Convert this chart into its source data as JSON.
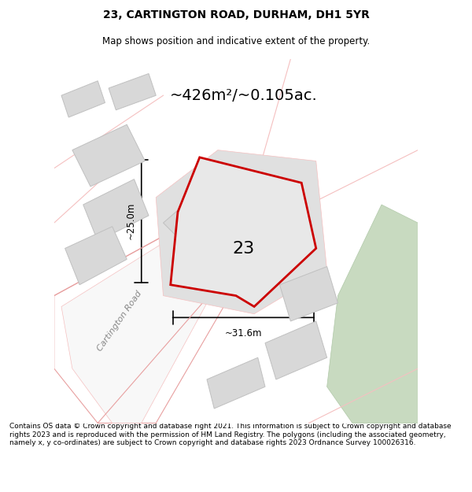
{
  "title": "23, CARTINGTON ROAD, DURHAM, DH1 5YR",
  "subtitle": "Map shows position and indicative extent of the property.",
  "area_label": "~426m²/~0.105ac.",
  "dim_vertical": "~25.0m",
  "dim_horizontal": "~31.6m",
  "plot_number": "23",
  "footer": "Contains OS data © Crown copyright and database right 2021. This information is subject to Crown copyright and database rights 2023 and is reproduced with the permission of HM Land Registry. The polygons (including the associated geometry, namely x, y co-ordinates) are subject to Crown copyright and database rights 2023 Ordnance Survey 100026316.",
  "bg_color": "#f5f5f5",
  "map_bg": "#f0f0f0",
  "road_color": "#f5c0c0",
  "road_outline": "#e8a0a0",
  "building_color": "#d8d8d8",
  "building_outline": "#c0c0c0",
  "plot_fill": "#e8e8e8",
  "plot_edge": "#cc0000",
  "green_color": "#c8dac0",
  "road_label": "Cartington Road",
  "title_fontsize": 10,
  "subtitle_fontsize": 9
}
